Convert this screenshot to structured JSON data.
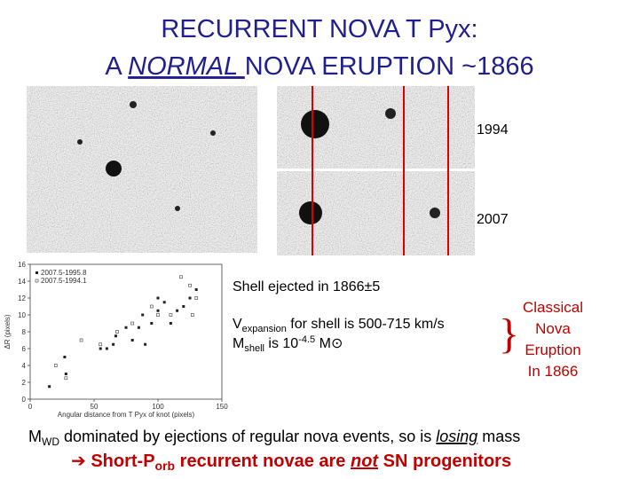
{
  "title": {
    "line1": "RECURRENT NOVA T Pyx:",
    "line2_pre": "A ",
    "line2_em": "NORMAL ",
    "line2_post": "NOVA ERUPTION ~1866"
  },
  "images": {
    "label_top": "1994",
    "label_bottom": "2007"
  },
  "chart_data": {
    "type": "scatter",
    "xlabel": "Angular distance from T Pyx of knot (pixels)",
    "ylabel": "ΔR (pixels)",
    "xlim": [
      0,
      150
    ],
    "ylim": [
      0,
      16
    ],
    "xticks": [
      0,
      50,
      100,
      150
    ],
    "yticks": [
      0,
      2,
      4,
      6,
      8,
      10,
      12,
      14,
      16
    ],
    "series": [
      {
        "name": "2007.5-1995.8",
        "color": "#222222",
        "marker": "filled",
        "x": [
          15,
          28,
          27,
          55,
          60,
          65,
          67,
          75,
          80,
          85,
          88,
          90,
          95,
          100,
          100,
          105,
          110,
          115,
          120,
          125,
          130
        ],
        "values": [
          1.5,
          3,
          5,
          6,
          6,
          6.5,
          7.5,
          8.5,
          7,
          8.5,
          10,
          6.5,
          9,
          10.5,
          12,
          11.5,
          9,
          10.5,
          11,
          12,
          13
        ]
      },
      {
        "name": "2007.5-1994.1",
        "color": "#555555",
        "marker": "open",
        "x": [
          20,
          28,
          40,
          55,
          68,
          80,
          95,
          100,
          110,
          118,
          125,
          130,
          127
        ],
        "values": [
          4,
          2.5,
          7,
          6.5,
          8,
          9,
          11,
          10,
          10,
          14.5,
          13.5,
          12,
          10
        ]
      }
    ]
  },
  "notes": {
    "shell": "Shell ejected in 1866±5",
    "vexp_v": "V",
    "vexp_sub": "expansion",
    "vexp_rest": " for shell is 500-715 km/s",
    "mshell_m": "M",
    "mshell_sub": "shell",
    "mshell_mid": " is 10",
    "mshell_sup": "-4.5",
    "mshell_rest": " M⊙",
    "brace": "}",
    "classical": [
      "Classical",
      "Nova",
      "Eruption",
      "In 1866"
    ]
  },
  "footer": {
    "m": "M",
    "wd": "WD",
    "mid": " dominated by ejections of regular nova events, so is ",
    "losing": "losing",
    "end": " mass",
    "arrow": "➔",
    "short": " Short-P",
    "orb": "orb",
    "rec": " recurrent novae are ",
    "not": "not",
    "sn": " SN progenitors"
  }
}
